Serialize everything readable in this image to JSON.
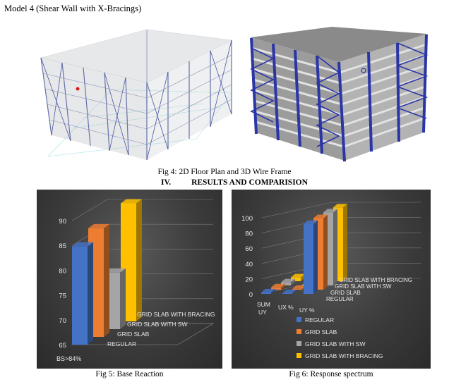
{
  "model_title": "Model 4 (Shear Wall with X-Bracings)",
  "fig4_caption": "Fig 4: 2D Floor Plan and 3D Wire Frame",
  "section": {
    "number": "IV.",
    "title": "RESULTS AND COMPARISION"
  },
  "fig5_caption": "Fig 5: Base Reaction",
  "fig6_caption": "Fig 6: Response spectrum",
  "colors": {
    "regular": "#4472c4",
    "grid_slab": "#ed7d31",
    "grid_slab_sw": "#a5a5a5",
    "grid_slab_bracing": "#ffc000"
  },
  "chart_data": [
    {
      "type": "bar",
      "title": "",
      "categories": [
        "BS>84%"
      ],
      "series": [
        {
          "name": "REGULAR",
          "values": [
            84.8
          ]
        },
        {
          "name": "GRID SLAB",
          "values": [
            86.9
          ]
        },
        {
          "name": "GRID SLAB WITH SW",
          "values": [
            76.4
          ]
        },
        {
          "name": "GRID SLAB WITH BRACING",
          "values": [
            88.8
          ]
        }
      ],
      "ylim": [
        65,
        90
      ],
      "yticks": [
        "65",
        "70",
        "75",
        "80",
        "85",
        "90"
      ],
      "legend": "depth-axis",
      "grid": true
    },
    {
      "type": "bar",
      "title": "",
      "categories": [
        "SUM UY",
        "UX %",
        "UY %"
      ],
      "series": [
        {
          "name": "REGULAR",
          "values": [
            2,
            1,
            92
          ]
        },
        {
          "name": "GRID SLAB",
          "values": [
            3,
            1,
            94
          ]
        },
        {
          "name": "GRID SLAB WITH SW",
          "values": [
            4,
            1,
            96
          ]
        },
        {
          "name": "GRID SLAB WITH BRACING",
          "values": [
            5,
            1,
            97
          ]
        }
      ],
      "ylim": [
        0,
        100
      ],
      "yticks": [
        "0",
        "20",
        "40",
        "60",
        "80",
        "100"
      ],
      "legend": "bottom",
      "grid": true
    }
  ]
}
